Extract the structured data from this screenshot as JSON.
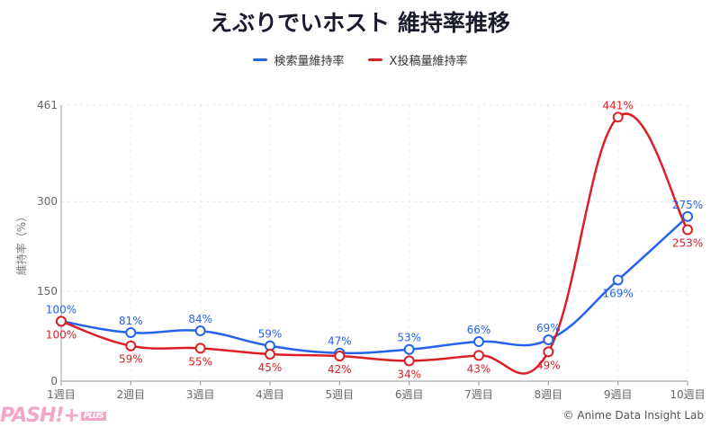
{
  "chart_data": {
    "type": "line",
    "title": "えぶりでいホスト 維持率推移",
    "xlabel": "",
    "ylabel": "維持率（%）",
    "categories": [
      "1週目",
      "2週目",
      "3週目",
      "4週目",
      "5週目",
      "6週目",
      "7週目",
      "8週目",
      "9週目",
      "10週目"
    ],
    "yticks": [
      0,
      150,
      300,
      461
    ],
    "ylim": [
      0,
      461
    ],
    "grid": true,
    "legend_position": "top-center",
    "series": [
      {
        "name": "検索量維持率",
        "color": "#2563eb",
        "values": [
          100,
          81,
          84,
          59,
          47,
          53,
          66,
          69,
          169,
          275
        ]
      },
      {
        "name": "X投稿量維持率",
        "color": "#dc1f26",
        "values": [
          100,
          59,
          55,
          45,
          42,
          34,
          43,
          49,
          441,
          253
        ]
      }
    ]
  },
  "credit": "© Anime Data Insight Lab",
  "logo": {
    "text": "PASH!+",
    "badge": "PLUS"
  }
}
